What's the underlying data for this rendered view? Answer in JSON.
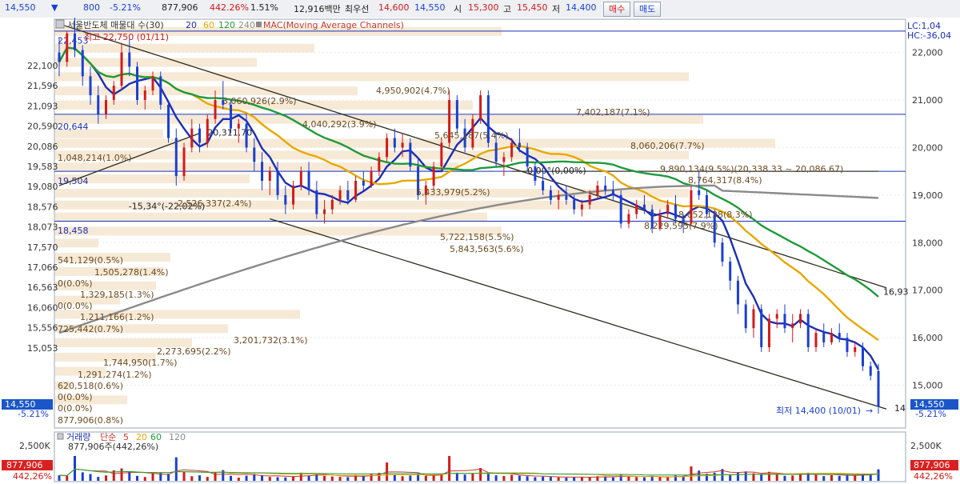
{
  "toolbar": {
    "price": "14,550",
    "arrow": "▼",
    "change": "800",
    "change_pct": "-5.21%",
    "volume": "877,906",
    "volume_pct": "442.26%",
    "turnover_pct": "1.51%",
    "amount": "12,916백만",
    "best_ask_label": "최우선",
    "best_ask": "14,600",
    "best_bid": "14,550",
    "open_label": "시",
    "open": "15,300",
    "high_label": "고",
    "high": "15,450",
    "low_label": "저",
    "low": "14,400",
    "buy_label": "매수",
    "sell_label": "매도"
  },
  "chart_data": {
    "type": "line",
    "title": "서울반도체 매물대 수(30)",
    "ma_legend": [
      "20",
      "60",
      "120",
      "240"
    ],
    "mac_label": "MAC(Moving Average Channels)",
    "ylim": [
      14100,
      22700
    ],
    "left_ticks": [
      "22,100",
      "21,596",
      "21,093",
      "20,590",
      "20,086",
      "19,583",
      "19,080",
      "18,576",
      "18,073",
      "17,570",
      "17,066",
      "16,563",
      "16,060",
      "15,556",
      "15,053"
    ],
    "right_ticks": [
      "22,000",
      "21,000",
      "20,000",
      "19,000",
      "18,000",
      "17,000",
      "16,000",
      "15,000"
    ],
    "right_tick_values": [
      22000,
      21000,
      20000,
      19000,
      18000,
      17000,
      16000,
      15000
    ],
    "lc_label": "LC:1,04",
    "hc_label": "HC:-36,04",
    "current_price": "14,550",
    "current_change_pct": "-5.21%",
    "high_annotation": "최고 22,750 (01/11)",
    "low_annotation": "최저 14,400 (10/01)",
    "h_line_labels": [
      "22,453",
      "20,644",
      "19,504",
      "18,458"
    ],
    "h_line_values": [
      22453,
      20644,
      19504,
      18458
    ],
    "trend_labels": [
      "20,311.70",
      "-15,34°(-22,02%)",
      "0,00°(0,00%)",
      "16,93",
      "14"
    ],
    "top_profile_labels": [
      "4,950,902(4.7%)",
      "3,060,926(2.9%)",
      "7,402,187(7.1%)",
      "4,040,292(3.9%)",
      "5,645,187(5.4%)",
      "8,060,206(7.7%)",
      "1,048,214(1.0%)",
      "9,890,134(9.5%)(20,338.33 ~ 20,086.67)",
      "8,764,317(8.4%)",
      "5,433,979(5.2%)",
      "2,526,337(2.4%)",
      "8,652,138(8.3%)",
      "8,229,595(7.9%)",
      "5,722,158(5.5%)",
      "5,843,563(5.6%)"
    ],
    "left_profile_labels": [
      "541,129(0.5%)",
      "1,505,278(1.4%)",
      "0(0.0%)",
      "1,329,185(1.3%)",
      "0(0.0%)",
      "1,211,166(1.2%)",
      "725,442(0.7%)",
      "3,201,732(3.1%)",
      "2,273,695(2.2%)",
      "1,744,950(1.7%)",
      "1,291,274(1.2%)",
      "620,518(0.6%)",
      "0(0.0%)",
      "0(0.0%)",
      "877,906(0.8%)"
    ],
    "ma_colors": {
      "ma20": "#1a2fb5",
      "ma60": "#e8a800",
      "ma120": "#1e9a3a",
      "ma240": "#8a8a8a"
    },
    "candles": [
      [
        22000,
        22300,
        21500,
        21800
      ],
      [
        21800,
        22450,
        21700,
        22400
      ],
      [
        22400,
        22750,
        21900,
        22050
      ],
      [
        22050,
        22150,
        21300,
        21500
      ],
      [
        21500,
        21700,
        20900,
        21100
      ],
      [
        21100,
        21300,
        20500,
        20700
      ],
      [
        20700,
        21100,
        20600,
        21000
      ],
      [
        21000,
        21400,
        20900,
        21300
      ],
      [
        21300,
        22200,
        21200,
        22000
      ],
      [
        22000,
        22300,
        21500,
        21700
      ],
      [
        21700,
        21800,
        20900,
        21000
      ],
      [
        21000,
        21300,
        20800,
        21200
      ],
      [
        21200,
        21600,
        21100,
        21500
      ],
      [
        21500,
        21600,
        20800,
        20900
      ],
      [
        20900,
        21000,
        20100,
        20200
      ],
      [
        20200,
        20400,
        19200,
        19400
      ],
      [
        19400,
        20100,
        19300,
        20000
      ],
      [
        20000,
        20600,
        19900,
        20400
      ],
      [
        20400,
        20500,
        19900,
        20100
      ],
      [
        20100,
        20700,
        20000,
        20600
      ],
      [
        20600,
        21200,
        20500,
        21000
      ],
      [
        21000,
        21400,
        20800,
        20900
      ],
      [
        20900,
        21000,
        20300,
        20400
      ],
      [
        20400,
        20600,
        20100,
        20500
      ],
      [
        20500,
        20700,
        19900,
        20000
      ],
      [
        20000,
        20200,
        19500,
        19700
      ],
      [
        19700,
        19900,
        19100,
        19300
      ],
      [
        19300,
        19600,
        19000,
        19500
      ],
      [
        19500,
        19700,
        18900,
        19000
      ],
      [
        19000,
        19200,
        18600,
        18800
      ],
      [
        18800,
        19300,
        18700,
        19200
      ],
      [
        19200,
        19600,
        19100,
        19500
      ],
      [
        19500,
        19700,
        19000,
        19100
      ],
      [
        19100,
        19300,
        18500,
        18600
      ],
      [
        18600,
        18900,
        18400,
        18700
      ],
      [
        18700,
        19000,
        18600,
        18900
      ],
      [
        18900,
        19200,
        18800,
        19100
      ],
      [
        19100,
        19300,
        18800,
        18900
      ],
      [
        18900,
        19400,
        18850,
        19300
      ],
      [
        19300,
        19500,
        19100,
        19200
      ],
      [
        19200,
        19600,
        19150,
        19500
      ],
      [
        19500,
        19900,
        19400,
        19800
      ],
      [
        19800,
        20300,
        19700,
        20200
      ],
      [
        20200,
        20400,
        19900,
        20000
      ],
      [
        20000,
        20300,
        19800,
        20100
      ],
      [
        20100,
        20200,
        19500,
        19600
      ],
      [
        19600,
        19800,
        18900,
        19000
      ],
      [
        19000,
        19300,
        18800,
        19200
      ],
      [
        19200,
        19700,
        19100,
        19600
      ],
      [
        19600,
        20200,
        19500,
        20100
      ],
      [
        20100,
        21200,
        20000,
        21000
      ],
      [
        21000,
        21100,
        20300,
        20400
      ],
      [
        20400,
        20600,
        19900,
        20000
      ],
      [
        20000,
        20700,
        19950,
        20600
      ],
      [
        20600,
        21200,
        20500,
        21100
      ],
      [
        21100,
        21200,
        20000,
        20100
      ],
      [
        20100,
        20300,
        19600,
        19700
      ],
      [
        19700,
        19900,
        19400,
        19800
      ],
      [
        19800,
        20200,
        19700,
        20100
      ],
      [
        20100,
        20400,
        19900,
        20000
      ],
      [
        20000,
        20100,
        19500,
        19600
      ],
      [
        19600,
        19700,
        19200,
        19300
      ],
      [
        19300,
        19500,
        19000,
        19100
      ],
      [
        19100,
        19200,
        18800,
        18900
      ],
      [
        18900,
        19100,
        18700,
        19000
      ],
      [
        19000,
        19200,
        18800,
        18900
      ],
      [
        18900,
        19000,
        18600,
        18700
      ],
      [
        18700,
        18900,
        18550,
        18800
      ],
      [
        18800,
        19100,
        18700,
        19000
      ],
      [
        19000,
        19300,
        18900,
        19200
      ],
      [
        19200,
        19400,
        19000,
        19100
      ],
      [
        19100,
        19300,
        18900,
        19000
      ],
      [
        19000,
        19100,
        18300,
        18400
      ],
      [
        18400,
        18700,
        18300,
        18600
      ],
      [
        18600,
        18900,
        18500,
        18800
      ],
      [
        18800,
        19000,
        18600,
        18700
      ],
      [
        18700,
        18800,
        18200,
        18300
      ],
      [
        18300,
        18700,
        18250,
        18600
      ],
      [
        18600,
        18900,
        18500,
        18800
      ],
      [
        18800,
        19000,
        18400,
        18500
      ],
      [
        18500,
        18600,
        18200,
        18400
      ],
      [
        18400,
        19200,
        18350,
        19100
      ],
      [
        19100,
        19500,
        18900,
        19000
      ],
      [
        19000,
        19100,
        18500,
        18600
      ],
      [
        18600,
        18700,
        17900,
        18000
      ],
      [
        18000,
        18100,
        17500,
        17600
      ],
      [
        17600,
        17700,
        17000,
        17200
      ],
      [
        17200,
        17300,
        16500,
        16700
      ],
      [
        16700,
        16800,
        16100,
        16200
      ],
      [
        16200,
        16700,
        16000,
        16600
      ],
      [
        16600,
        16700,
        15700,
        15800
      ],
      [
        15800,
        16500,
        15700,
        16400
      ],
      [
        16400,
        16600,
        16200,
        16500
      ],
      [
        16500,
        16700,
        16100,
        16200
      ],
      [
        16200,
        16500,
        15900,
        16300
      ],
      [
        16300,
        16600,
        16200,
        16500
      ],
      [
        16500,
        16600,
        15700,
        15800
      ],
      [
        15800,
        16200,
        15700,
        16100
      ],
      [
        16100,
        16300,
        15800,
        15900
      ],
      [
        15900,
        16200,
        15850,
        16100
      ],
      [
        16100,
        16300,
        15900,
        16000
      ],
      [
        16000,
        16100,
        15600,
        15700
      ],
      [
        15700,
        15900,
        15600,
        15800
      ],
      [
        15800,
        15900,
        15300,
        15400
      ],
      [
        15400,
        15500,
        15100,
        15200
      ],
      [
        15300,
        15450,
        14400,
        14550
      ]
    ],
    "volume_panel": {
      "title": "거래량",
      "simple_label": "단순",
      "ma_periods": [
        "5",
        "20",
        "60",
        "120"
      ],
      "info": "877,906주(442,26%)",
      "tick": "2,500K",
      "current": "877,906",
      "current_pct": "442,26%",
      "volumes": [
        420,
        380,
        1900,
        650,
        520,
        300,
        410,
        800,
        950,
        700,
        380,
        290,
        560,
        610,
        540,
        1800,
        700,
        350,
        420,
        300,
        650,
        820,
        380,
        240,
        390,
        510,
        440,
        300,
        280,
        260,
        350,
        620,
        410,
        520,
        380,
        330,
        300,
        280,
        450,
        390,
        520,
        610,
        1400,
        480,
        350,
        400,
        520,
        380,
        430,
        500,
        1900,
        620,
        480,
        560,
        980,
        530,
        420,
        370,
        460,
        390,
        350,
        280,
        320,
        300,
        260,
        240,
        290,
        310,
        280,
        350,
        300,
        260,
        520,
        310,
        290,
        270,
        350,
        300,
        260,
        410,
        380,
        1100,
        780,
        540,
        620,
        900,
        480,
        650,
        720,
        580,
        460,
        690,
        540,
        380,
        410,
        560,
        620,
        480,
        360,
        430,
        380,
        460,
        420,
        480,
        540,
        877
      ],
      "ymax": 3000
    }
  }
}
